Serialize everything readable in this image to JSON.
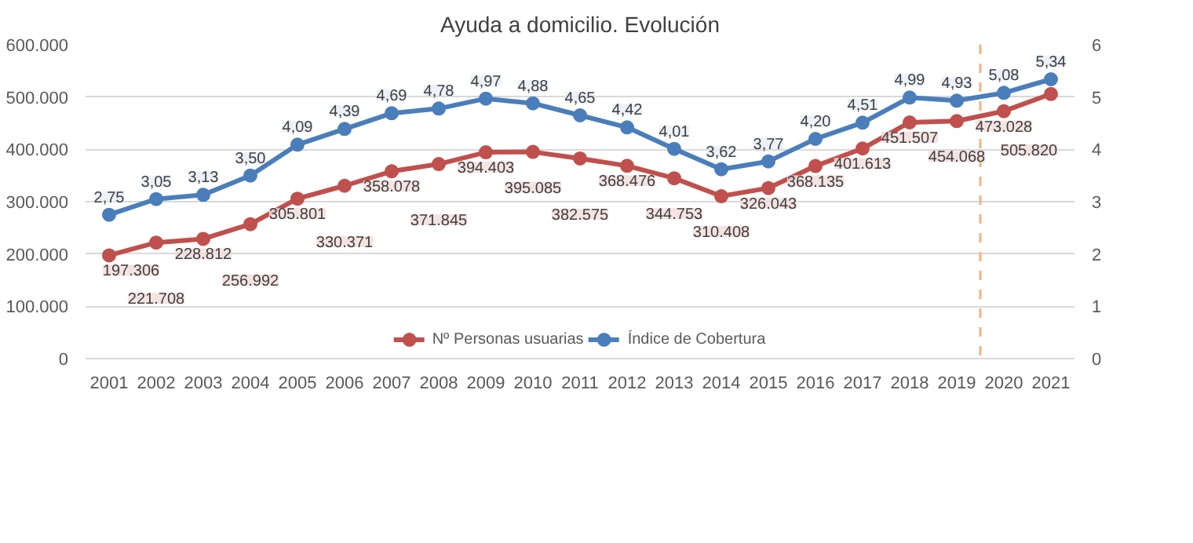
{
  "chart_data": {
    "type": "line",
    "title": "Ayuda a domicilio. Evolución",
    "x": [
      2001,
      2002,
      2003,
      2004,
      2005,
      2006,
      2007,
      2008,
      2009,
      2010,
      2011,
      2012,
      2013,
      2014,
      2015,
      2016,
      2017,
      2018,
      2019,
      2020,
      2021
    ],
    "xlim": [
      2000.5,
      2021.5
    ],
    "xticks": [
      2001,
      2002,
      2003,
      2004,
      2005,
      2006,
      2007,
      2008,
      2009,
      2010,
      2011,
      2012,
      2013,
      2014,
      2015,
      2016,
      2017,
      2018,
      2019,
      2020,
      2021
    ],
    "ylim": [
      0,
      600000
    ],
    "yticks": [
      {
        "value": 0,
        "label": "0"
      },
      {
        "value": 100000,
        "label": "100.000"
      },
      {
        "value": 200000,
        "label": "200.000"
      },
      {
        "value": 300000,
        "label": "300.000"
      },
      {
        "value": 400000,
        "label": "400.000"
      },
      {
        "value": 500000,
        "label": "500.000"
      },
      {
        "value": 600000,
        "label": "600.000"
      }
    ],
    "y2lim": [
      0,
      6
    ],
    "y2ticks": [
      0,
      1,
      2,
      3,
      4,
      5,
      6
    ],
    "grid": "y",
    "legend": "bottom",
    "marker": "circle",
    "line_style": "solid",
    "data_labels": true,
    "ref_lines": [
      {
        "axis": "x",
        "value": 2019.5,
        "label": null,
        "color": "#f4b183",
        "line_style": "dashed"
      }
    ],
    "series": [
      {
        "name": "Nº Personas usuarias",
        "color": "#c0504d",
        "values": [
          197306,
          221708,
          228812,
          256992,
          305801,
          330371,
          358078,
          371845,
          394403,
          395085,
          382575,
          368476,
          344753,
          310408,
          326043,
          368135,
          401613,
          451507,
          454068,
          473028,
          505820
        ],
        "value_labels": [
          "197.306",
          "221.708",
          "228.812",
          "256.992",
          "305.801",
          "330.371",
          "358.078",
          "371.845",
          "394.403",
          "395.085",
          "382.575",
          "368.476",
          "344.753",
          "310.408",
          "326.043",
          "368.135",
          "401.613",
          "451.507",
          "454.068",
          "473.028",
          "505.820"
        ]
      },
      {
        "name": "Índice de Cobertura",
        "color": "#4a7ebb",
        "axis": "y2",
        "values": [
          2.75,
          3.05,
          3.13,
          3.5,
          4.09,
          4.39,
          4.69,
          4.78,
          4.97,
          4.88,
          4.65,
          4.42,
          4.01,
          3.62,
          3.77,
          4.2,
          4.51,
          4.99,
          4.93,
          5.08,
          5.34
        ],
        "value_labels": [
          "2,75",
          "3,05",
          "3,13",
          "3,50",
          "4,09",
          "4,39",
          "4,69",
          "4,78",
          "4,97",
          "4,88",
          "4,65",
          "4,42",
          "4,01",
          "3,62",
          "3,77",
          "4,20",
          "4,51",
          "4,99",
          "4,93",
          "5,08",
          "5,34"
        ]
      }
    ]
  }
}
